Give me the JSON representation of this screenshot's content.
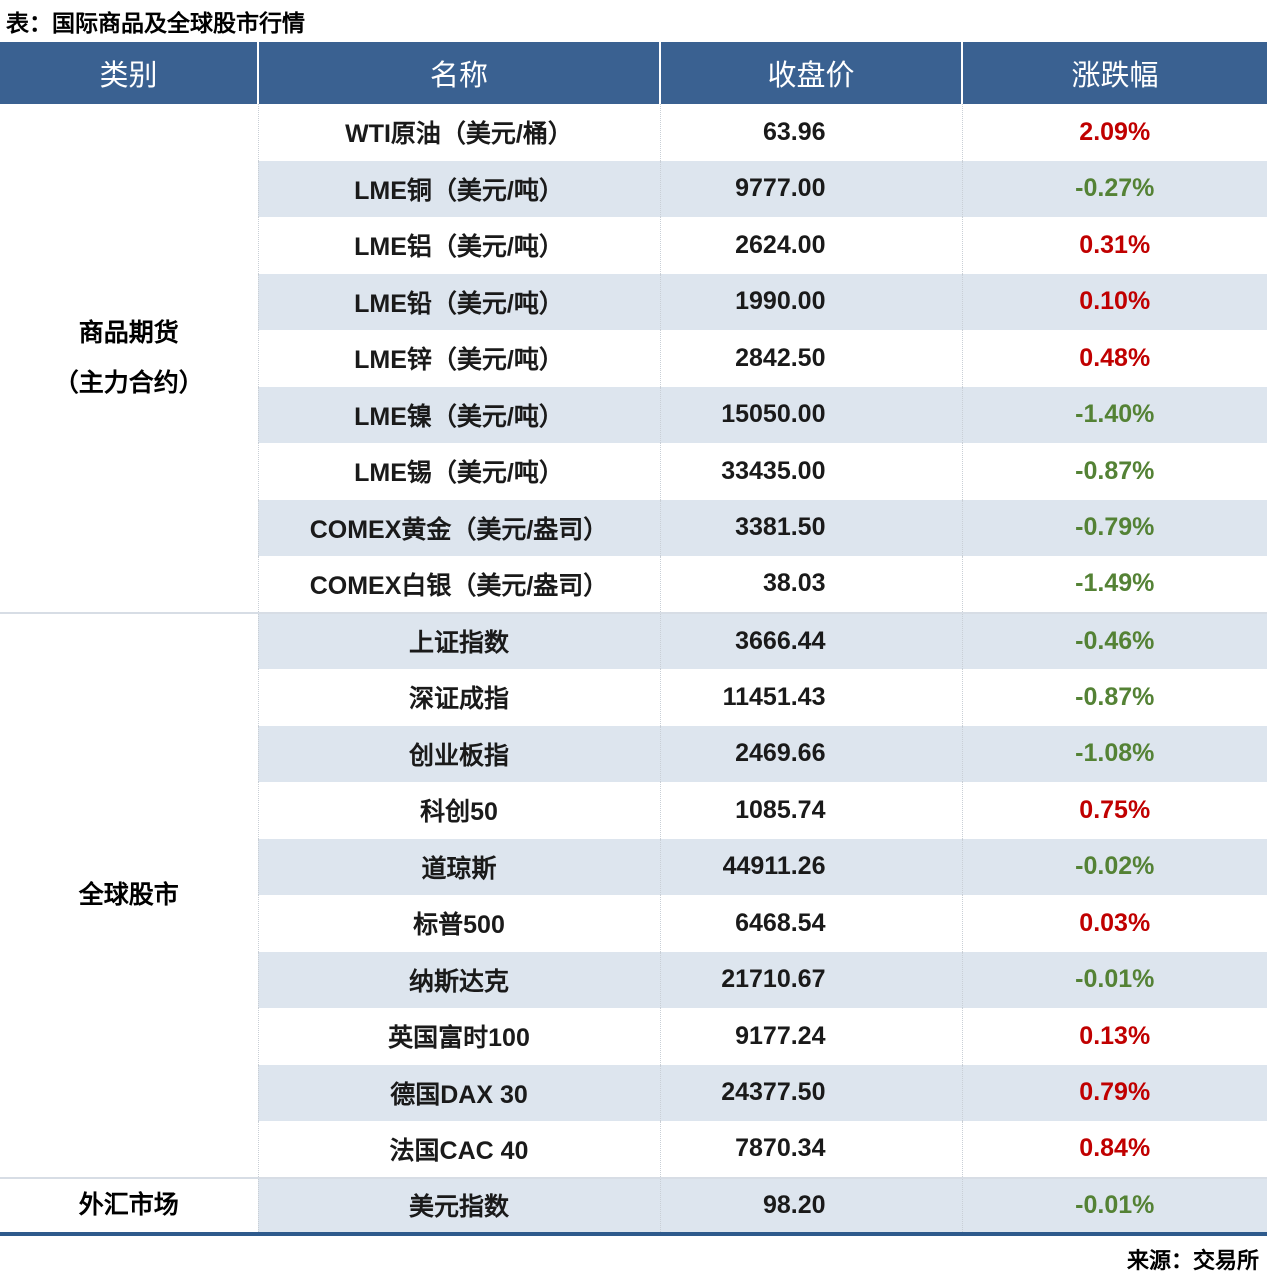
{
  "title": "表：国际商品及全球股市行情",
  "source": "来源：交易所",
  "colors": {
    "header_bg": "#3a6191",
    "header_text": "#ffffff",
    "row_stripe": "#dde5ee",
    "text": "#1a1a1a",
    "up_red": "#c00000",
    "down_green": "#548235",
    "bottom_line": "#2e5a8c"
  },
  "table": {
    "headers": [
      "类别",
      "名称",
      "收盘价",
      "涨跌幅"
    ],
    "sections": [
      {
        "category_lines": [
          "商品期货",
          "（主力合约）"
        ],
        "rows": [
          {
            "name": "WTI原油（美元/桶）",
            "close": "63.96",
            "change": "2.09%",
            "direction": "up"
          },
          {
            "name": "LME铜（美元/吨）",
            "close": "9777.00",
            "change": "-0.27%",
            "direction": "down"
          },
          {
            "name": "LME铝（美元/吨）",
            "close": "2624.00",
            "change": "0.31%",
            "direction": "up"
          },
          {
            "name": "LME铅（美元/吨）",
            "close": "1990.00",
            "change": "0.10%",
            "direction": "up"
          },
          {
            "name": "LME锌（美元/吨）",
            "close": "2842.50",
            "change": "0.48%",
            "direction": "up"
          },
          {
            "name": "LME镍（美元/吨）",
            "close": "15050.00",
            "change": "-1.40%",
            "direction": "down"
          },
          {
            "name": "LME锡（美元/吨）",
            "close": "33435.00",
            "change": "-0.87%",
            "direction": "down"
          },
          {
            "name": "COMEX黄金（美元/盎司）",
            "close": "3381.50",
            "change": "-0.79%",
            "direction": "down"
          },
          {
            "name": "COMEX白银（美元/盎司）",
            "close": "38.03",
            "change": "-1.49%",
            "direction": "down"
          }
        ]
      },
      {
        "category_lines": [
          "全球股市"
        ],
        "rows": [
          {
            "name": "上证指数",
            "close": "3666.44",
            "change": "-0.46%",
            "direction": "down"
          },
          {
            "name": "深证成指",
            "close": "11451.43",
            "change": "-0.87%",
            "direction": "down"
          },
          {
            "name": "创业板指",
            "close": "2469.66",
            "change": "-1.08%",
            "direction": "down"
          },
          {
            "name": "科创50",
            "close": "1085.74",
            "change": "0.75%",
            "direction": "up"
          },
          {
            "name": "道琼斯",
            "close": "44911.26",
            "change": "-0.02%",
            "direction": "down"
          },
          {
            "name": "标普500",
            "close": "6468.54",
            "change": "0.03%",
            "direction": "up"
          },
          {
            "name": "纳斯达克",
            "close": "21710.67",
            "change": "-0.01%",
            "direction": "down"
          },
          {
            "name": "英国富时100",
            "close": "9177.24",
            "change": "0.13%",
            "direction": "up"
          },
          {
            "name": "德国DAX 30",
            "close": "24377.50",
            "change": "0.79%",
            "direction": "up"
          },
          {
            "name": "法国CAC 40",
            "close": "7870.34",
            "change": "0.84%",
            "direction": "up"
          }
        ]
      },
      {
        "category_lines": [
          "外汇市场"
        ],
        "rows": [
          {
            "name": "美元指数",
            "close": "98.20",
            "change": "-0.01%",
            "direction": "down"
          }
        ]
      }
    ]
  }
}
